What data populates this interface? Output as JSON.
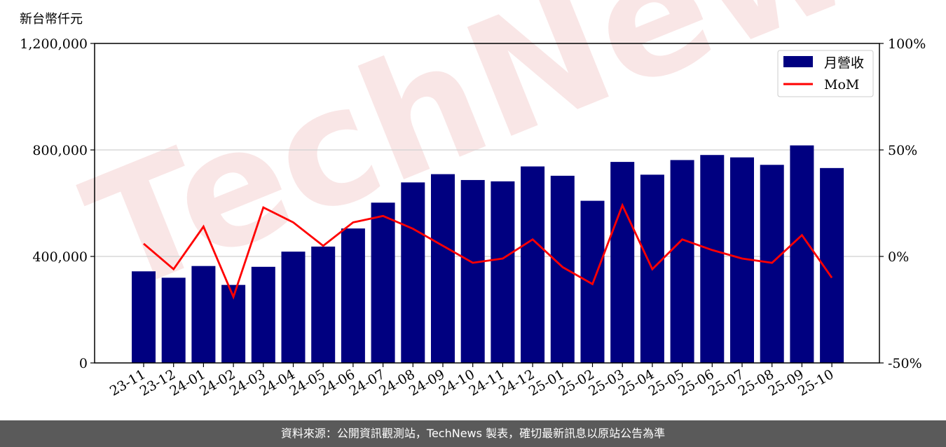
{
  "chart_data": {
    "type": "bar",
    "unit_label": "新台幣仟元",
    "categories": [
      "23-11",
      "23-12",
      "24-01",
      "24-02",
      "24-03",
      "24-04",
      "24-05",
      "24-06",
      "24-07",
      "24-08",
      "24-09",
      "24-10",
      "24-11",
      "24-12",
      "25-01",
      "25-02",
      "25-03",
      "25-04",
      "25-05",
      "25-06",
      "25-07",
      "25-08",
      "25-09",
      "25-10"
    ],
    "series": [
      {
        "name": "月營收",
        "type": "bar",
        "axis": "left",
        "color": "#000080",
        "values": [
          344000,
          320000,
          364000,
          293000,
          361000,
          418000,
          437000,
          505000,
          602000,
          678000,
          709000,
          687000,
          682000,
          738000,
          703000,
          609000,
          755000,
          707000,
          762000,
          781000,
          772000,
          744000,
          817000,
          732000
        ]
      },
      {
        "name": "MoM",
        "type": "line",
        "axis": "right",
        "color": "#ff0000",
        "values": [
          6,
          -6,
          14,
          -19,
          23,
          16,
          5,
          16,
          19,
          13,
          5,
          -3,
          -1,
          8,
          -5,
          -13,
          24,
          -6,
          8,
          3,
          -1,
          -3,
          10,
          -10
        ]
      }
    ],
    "y_left": {
      "min": 0,
      "max": 1200000,
      "ticks": [
        "0",
        "400,000",
        "800,000",
        "1,200,000"
      ]
    },
    "y_right": {
      "min": -50,
      "max": 100,
      "ticks": [
        "-50%",
        "0%",
        "50%",
        "100%"
      ]
    },
    "grid": "horizontal",
    "legend_position": "top-right"
  },
  "watermark": "TechNews",
  "footer": "資料來源：公開資訊觀測站，TechNews 製表，確切最新訊息以原站公告為準"
}
